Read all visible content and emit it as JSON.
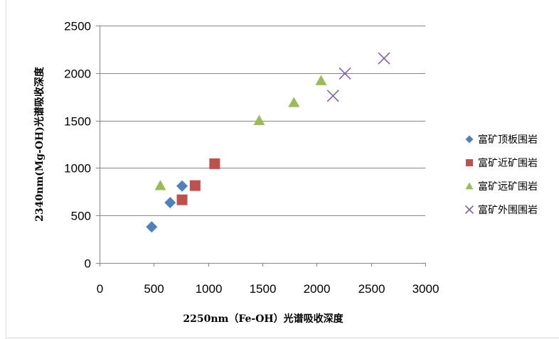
{
  "chart_data": {
    "type": "scatter",
    "title": "",
    "xlabel": "2250nm（Fe-OH）光谱吸收深度",
    "ylabel": "2340nm(Mg-OH)光谱吸收深度",
    "xlim": [
      0,
      3000
    ],
    "ylim": [
      0,
      2500
    ],
    "x_ticks": [
      "0",
      "500",
      "1000",
      "1500",
      "2000",
      "2500",
      "3000"
    ],
    "y_ticks": [
      "0",
      "500",
      "1000",
      "1500",
      "2000",
      "2500"
    ],
    "grid": "horizontal",
    "legend_position": "right",
    "series": [
      {
        "name": "富矿顶板围岩",
        "marker": "diamond",
        "color": "#4F81BD",
        "points": [
          [
            480,
            380
          ],
          [
            650,
            635
          ],
          [
            760,
            810
          ]
        ]
      },
      {
        "name": "富矿近矿围岩",
        "marker": "square",
        "color": "#C0504D",
        "points": [
          [
            760,
            665
          ],
          [
            880,
            815
          ],
          [
            1060,
            1045
          ]
        ]
      },
      {
        "name": "富矿远矿围岩",
        "marker": "triangle",
        "color": "#9BBB59",
        "points": [
          [
            560,
            815
          ],
          [
            1470,
            1500
          ],
          [
            1790,
            1690
          ],
          [
            2040,
            1920
          ]
        ]
      },
      {
        "name": "富矿外围围岩",
        "marker": "x",
        "color": "#8064A2",
        "points": [
          [
            2150,
            1760
          ],
          [
            2260,
            1995
          ],
          [
            2620,
            2155
          ]
        ]
      }
    ]
  }
}
